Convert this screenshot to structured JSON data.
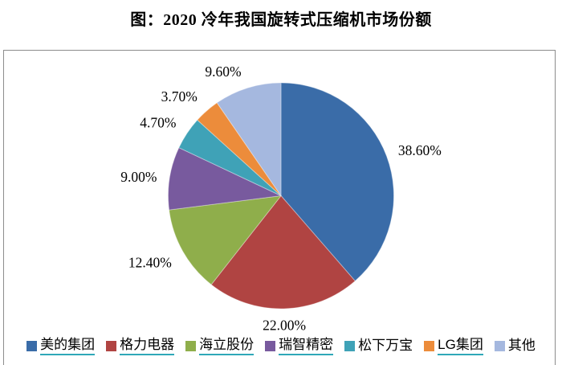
{
  "title": "图：2020 冷年我国旋转式压缩机市场份额",
  "chart_data": {
    "type": "pie",
    "title": "图：2020 冷年我国旋转式压缩机市场份额",
    "labels": [
      "美的集团",
      "格力电器",
      "海立股份",
      "瑞智精密",
      "松下万宝",
      "LG集团",
      "其他"
    ],
    "values": [
      38.6,
      22.0,
      12.4,
      9.0,
      4.7,
      3.7,
      9.6
    ],
    "value_labels": [
      "38.60%",
      "22.00%",
      "12.40%",
      "9.00%",
      "4.70%",
      "3.70%",
      "9.60%"
    ],
    "colors": [
      "#3A6CA8",
      "#B04442",
      "#8FAE4B",
      "#785A9E",
      "#3FA2B7",
      "#EC8C3B",
      "#A5B8DF"
    ],
    "start_angle_deg": 0,
    "direction": "clockwise",
    "legend_position": "bottom",
    "legend_underline": [
      true,
      true,
      true,
      true,
      false,
      true,
      false
    ],
    "legend_underline_color": "#2FA8B8",
    "frame_border_color": "#8c8c8c",
    "label_color": "#000000",
    "background_color": "#ffffff"
  }
}
